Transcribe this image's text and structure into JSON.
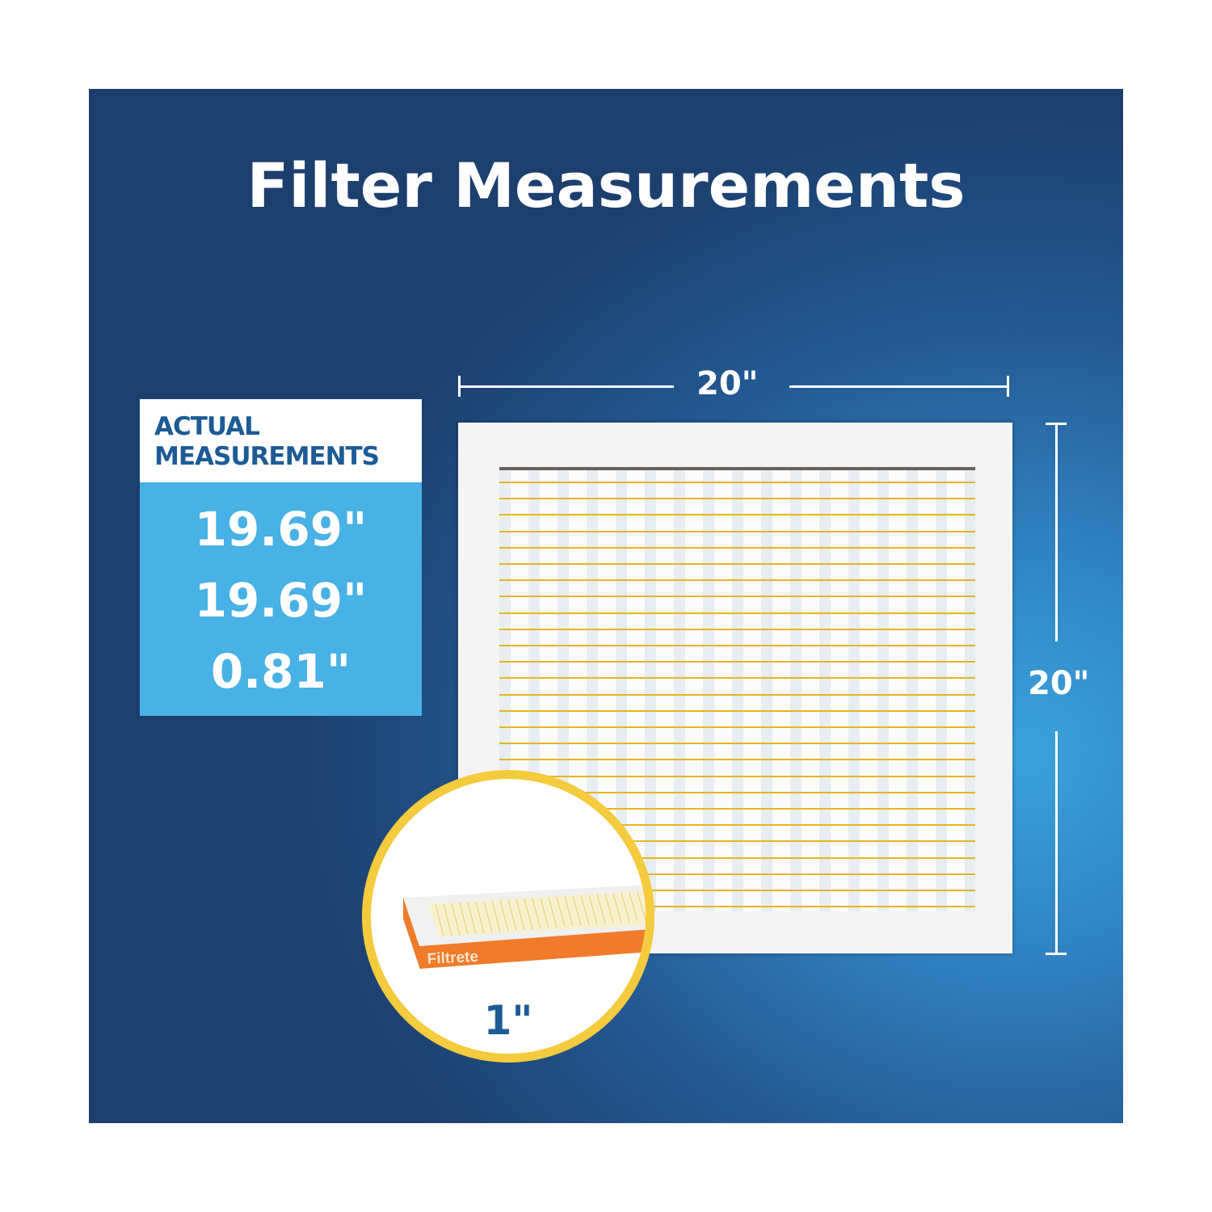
{
  "title": "Filter Measurements",
  "actual": {
    "heading_line1": "ACTUAL",
    "heading_line2": "MEASUREMENTS",
    "values": [
      "19.69\"",
      "19.69\"",
      "0.81\""
    ]
  },
  "nominal": {
    "width": "20\"",
    "height": "20\"",
    "depth": "1\""
  },
  "inset": {
    "brand": "Filtrete"
  },
  "colors": {
    "background": "#245a94",
    "accent_blue": "#48b1e6",
    "heading_blue": "#1d5b96",
    "circle_border": "#f4cb3d",
    "wire": "#e6b521",
    "brand_orange": "#f07b2a"
  }
}
